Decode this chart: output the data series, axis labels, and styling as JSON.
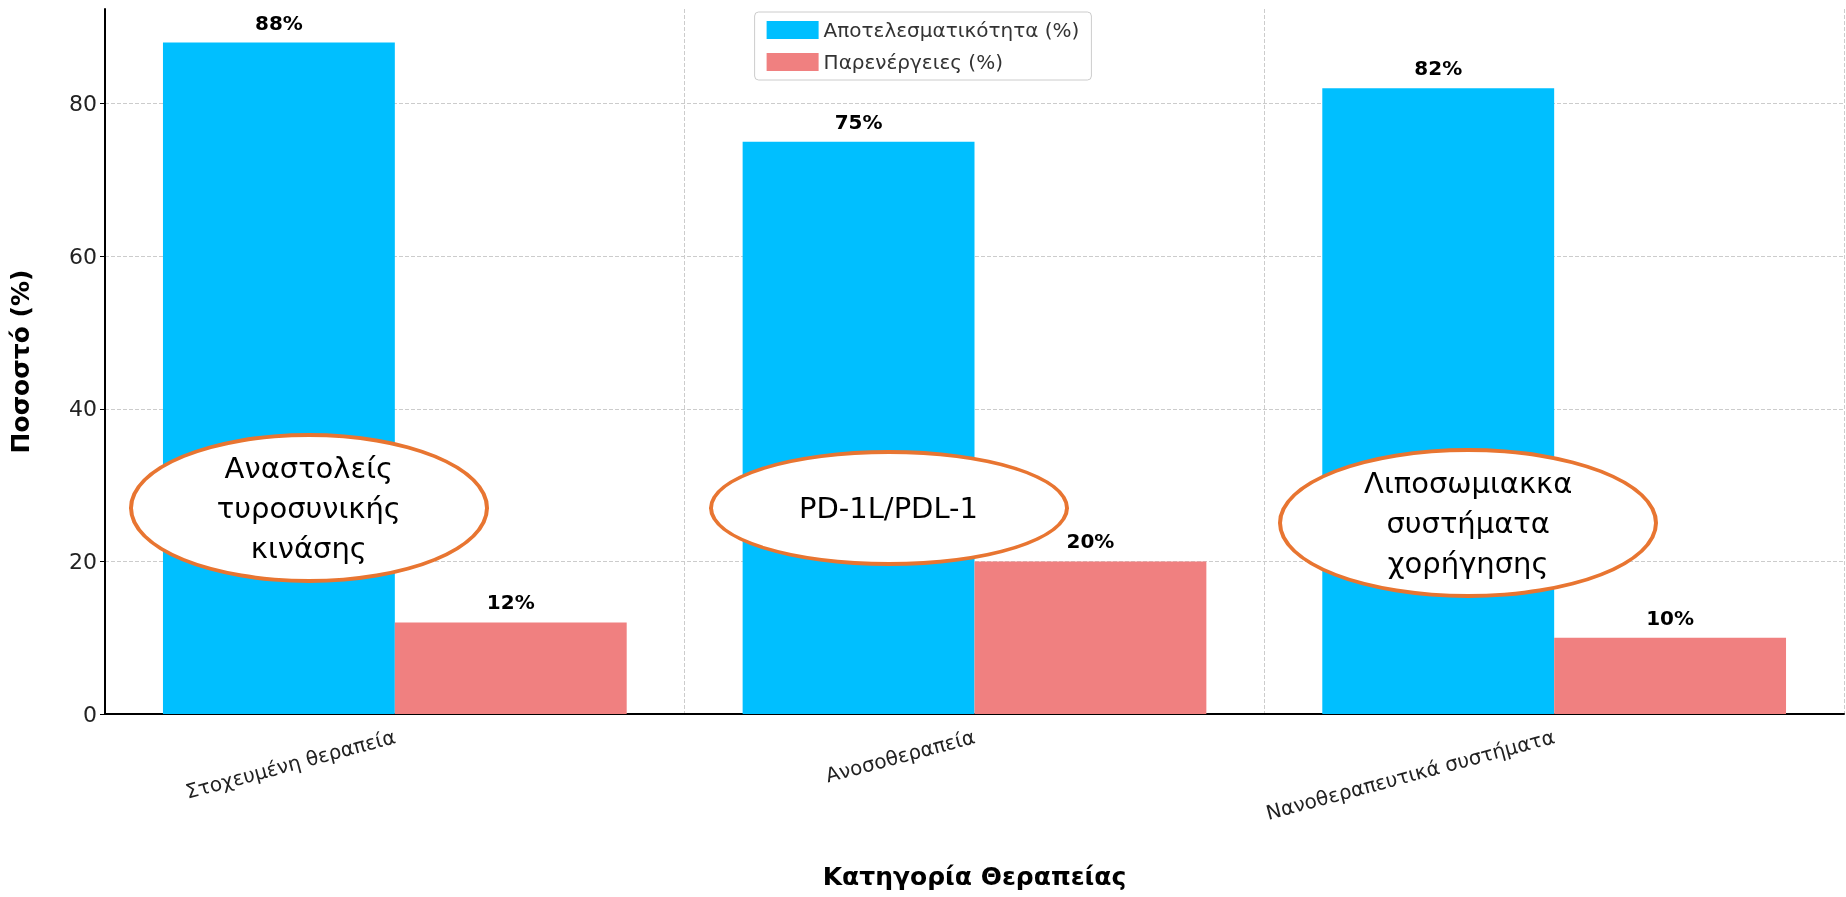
{
  "chart_data": {
    "type": "bar",
    "xlabel": "Κατηγορία Θεραπείας",
    "ylabel": "Ποσοστό (%)",
    "categories": [
      "Στοχευμένη θεραπεία",
      "Ανοσοθεραπεία",
      "Νανοθεραπευτικά συστήματα"
    ],
    "series": [
      {
        "name": "Αποτελεσματικότητα (%)",
        "color": "#00bfff",
        "values": [
          88,
          75,
          82
        ],
        "value_labels": [
          "88%",
          "75%",
          "82%"
        ]
      },
      {
        "name": "Παρενέργειες (%)",
        "color": "#f08080",
        "values": [
          12,
          20,
          10
        ],
        "value_labels": [
          "12%",
          "20%",
          "10%"
        ]
      }
    ],
    "ylim": [
      0,
      92.4
    ],
    "yticks": [
      0,
      20,
      40,
      60,
      80
    ],
    "grid": true,
    "legend": "top",
    "annotations": [
      "Αναστολείς\nτυροσυνικής\nκινάσης",
      "PD-1L/PDL-1",
      "Λιποσωμιακκα\nσυστήματα\nχορήγησης"
    ]
  }
}
